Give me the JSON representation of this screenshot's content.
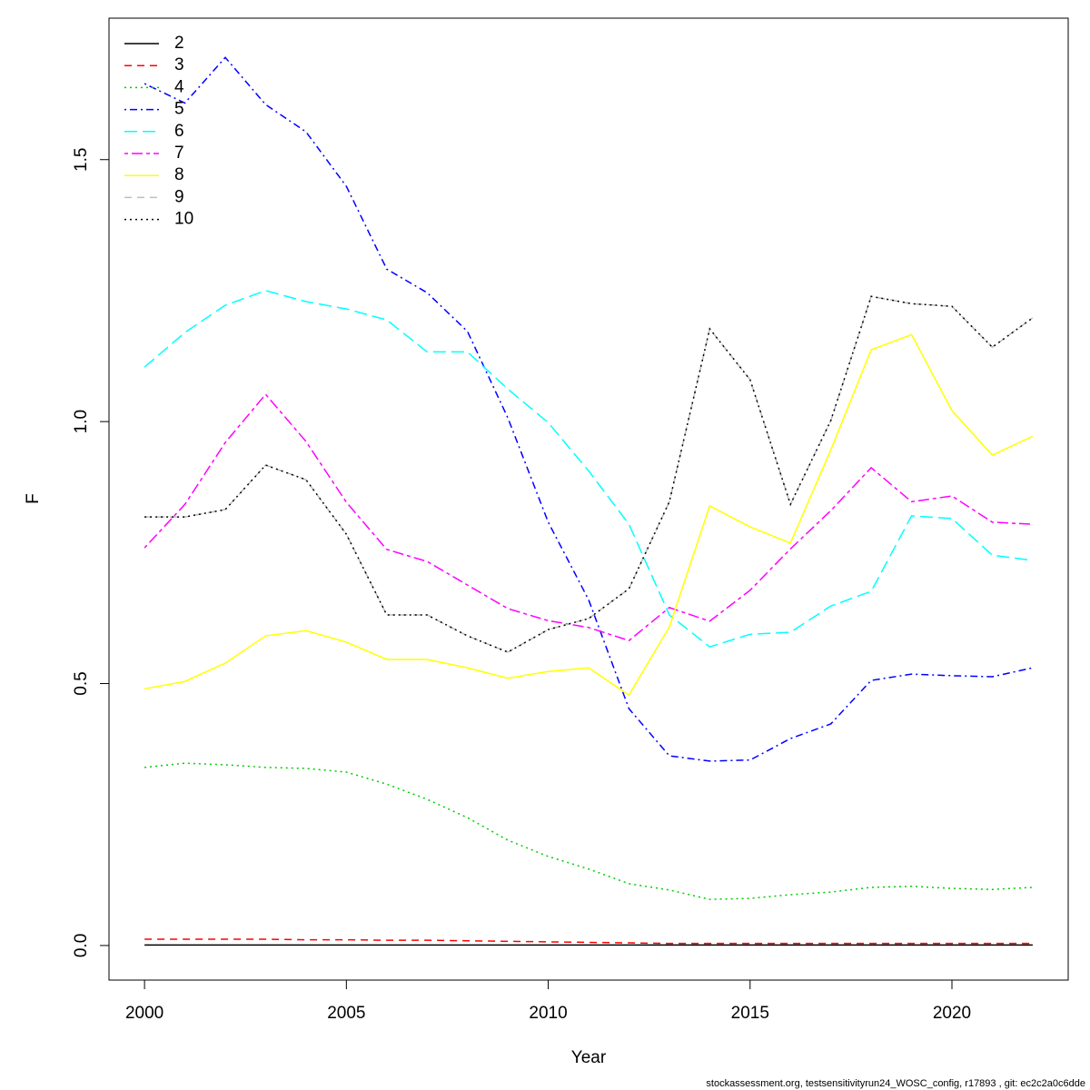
{
  "chart_data": {
    "type": "line",
    "x_label": "Year",
    "y_label": "F",
    "footnote": "stockassessment.org, testsensitivityrun24_WOSC_config, r17893 , git: ec2c2a0c6dde",
    "legend_position": "topleft",
    "xlim": [
      1999.12,
      2022.88
    ],
    "xticks": [
      2000,
      2005,
      2010,
      2015,
      2020
    ],
    "ylim": [
      -0.066,
      1.77
    ],
    "yticks": [
      {
        "value": 0,
        "label": "0.0"
      },
      0.5,
      {
        "value": 1,
        "label": "1.0"
      },
      1.5
    ],
    "x": [
      2000,
      2001,
      2002,
      2003,
      2004,
      2005,
      2006,
      2007,
      2008,
      2009,
      2010,
      2011,
      2012,
      2013,
      2014,
      2015,
      2016,
      2017,
      2018,
      2019,
      2020,
      2021,
      2022
    ],
    "series": [
      {
        "name": "2",
        "color": "#000000",
        "dash": "solid",
        "values": [
          0.001,
          0.001,
          0.001,
          0.001,
          0.001,
          0.001,
          0.001,
          0.001,
          0.001,
          0.001,
          0.001,
          0.001,
          0.001,
          0.001,
          0.001,
          0.001,
          0.001,
          0.001,
          0.001,
          0.001,
          0.001,
          0.001,
          0.001
        ]
      },
      {
        "name": "3",
        "color": "#ff0000",
        "dash": "dashed",
        "values": [
          0.012,
          0.012,
          0.012,
          0.012,
          0.011,
          0.011,
          0.01,
          0.01,
          0.009,
          0.008,
          0.007,
          0.006,
          0.005,
          0.004,
          0.004,
          0.004,
          0.004,
          0.004,
          0.004,
          0.004,
          0.004,
          0.004,
          0.004
        ]
      },
      {
        "name": "4",
        "color": "#00cd00",
        "dash": "dotted",
        "values": [
          0.34,
          0.348,
          0.345,
          0.34,
          0.338,
          0.331,
          0.308,
          0.279,
          0.244,
          0.201,
          0.17,
          0.146,
          0.118,
          0.106,
          0.088,
          0.09,
          0.097,
          0.102,
          0.111,
          0.113,
          0.109,
          0.107,
          0.111
        ]
      },
      {
        "name": "5",
        "color": "#0000ff",
        "dash": "dotdash",
        "values": [
          1.645,
          1.608,
          1.695,
          1.605,
          1.553,
          1.449,
          1.291,
          1.246,
          1.172,
          1.007,
          0.808,
          0.66,
          0.452,
          0.362,
          0.352,
          0.354,
          0.395,
          0.423,
          0.506,
          0.518,
          0.515,
          0.513,
          0.53
        ]
      },
      {
        "name": "6",
        "color": "#00ffff",
        "dash": "longdash",
        "values": [
          1.104,
          1.17,
          1.222,
          1.25,
          1.229,
          1.215,
          1.194,
          1.133,
          1.133,
          1.062,
          0.998,
          0.906,
          0.804,
          0.631,
          0.57,
          0.594,
          0.598,
          0.648,
          0.676,
          0.82,
          0.815,
          0.745,
          0.735
        ]
      },
      {
        "name": "7",
        "color": "#ff00ff",
        "dash": "twodash",
        "values": [
          0.759,
          0.842,
          0.96,
          1.052,
          0.962,
          0.846,
          0.756,
          0.733,
          0.688,
          0.643,
          0.62,
          0.607,
          0.582,
          0.645,
          0.619,
          0.678,
          0.757,
          0.83,
          0.912,
          0.847,
          0.858,
          0.808,
          0.804
        ]
      },
      {
        "name": "8",
        "color": "#ffff00",
        "dash": "solid",
        "values": [
          0.49,
          0.504,
          0.539,
          0.591,
          0.601,
          0.579,
          0.546,
          0.546,
          0.53,
          0.51,
          0.523,
          0.53,
          0.478,
          0.608,
          0.839,
          0.799,
          0.768,
          0.946,
          1.137,
          1.166,
          1.021,
          0.936,
          0.972
        ]
      },
      {
        "name": "9",
        "color": "#bebebe",
        "dash": "dashed",
        "values": [
          0.818,
          0.818,
          0.832,
          0.917,
          0.889,
          0.785,
          0.631,
          0.631,
          0.591,
          0.56,
          0.603,
          0.624,
          0.681,
          0.847,
          1.177,
          1.08,
          0.842,
          1.002,
          1.239,
          1.225,
          1.22,
          1.142,
          1.198
        ]
      },
      {
        "name": "10",
        "color": "#000000",
        "dash": "dotted",
        "values": [
          0.818,
          0.818,
          0.832,
          0.917,
          0.889,
          0.785,
          0.631,
          0.631,
          0.591,
          0.56,
          0.603,
          0.624,
          0.681,
          0.847,
          1.177,
          1.08,
          0.842,
          1.002,
          1.239,
          1.225,
          1.22,
          1.142,
          1.198
        ]
      }
    ]
  }
}
